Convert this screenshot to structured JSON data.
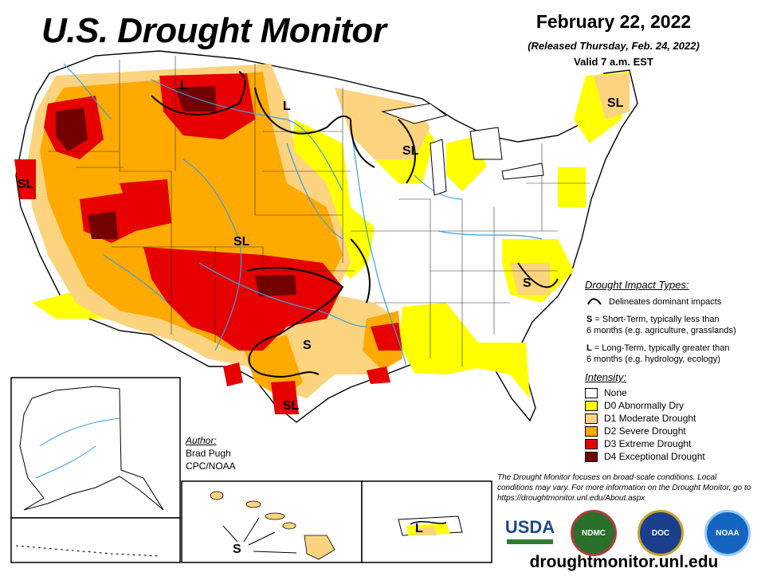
{
  "header": {
    "title": "U.S. Drought Monitor",
    "date": "February 22, 2022",
    "released": "(Released Thursday, Feb. 24, 2022)",
    "valid": "Valid 7 a.m. EST"
  },
  "impact_types": {
    "heading": "Drought Impact Types:",
    "line_desc": "Delineates dominant impacts",
    "s_code": "S",
    "s_desc": " = Short-Term, typically less than",
    "s_desc2": "6 months (e.g. agriculture, grasslands)",
    "l_code": "L",
    "l_desc": " = Long-Term, typically greater than",
    "l_desc2": "6 months (e.g. hydrology, ecology)"
  },
  "intensity": {
    "heading": "Intensity:",
    "levels": [
      {
        "label": "None",
        "color": "#ffffff"
      },
      {
        "label": "D0 Abnormally Dry",
        "color": "#ffff00"
      },
      {
        "label": "D1 Moderate Drought",
        "color": "#fcd37f"
      },
      {
        "label": "D2 Severe Drought",
        "color": "#ffaa00"
      },
      {
        "label": "D3 Extreme Drought",
        "color": "#e60000"
      },
      {
        "label": "D4 Exceptional Drought",
        "color": "#730000"
      }
    ]
  },
  "author": {
    "heading": "Author:",
    "name": "Brad Pugh",
    "org": "CPC/NOAA"
  },
  "disclaimer": "The Drought Monitor focuses on broad-scale conditions. Local conditions may vary. For more information on the Drought Monitor, go to https://droughtmonitor.unl.edu/About.aspx",
  "url": "droughtmonitor.unl.edu",
  "map_labels": {
    "l": "L",
    "sl": "SL",
    "s": "S"
  },
  "logos": {
    "usda": "USDA",
    "ndmc": "NDMC",
    "commerce": "DOC",
    "noaa": "NOAA"
  },
  "colors": {
    "none": "#ffffff",
    "d0": "#ffff00",
    "d1": "#fcd37f",
    "d2": "#ffaa00",
    "d3": "#e60000",
    "d4": "#730000",
    "rivers": "#3a9fe0"
  }
}
